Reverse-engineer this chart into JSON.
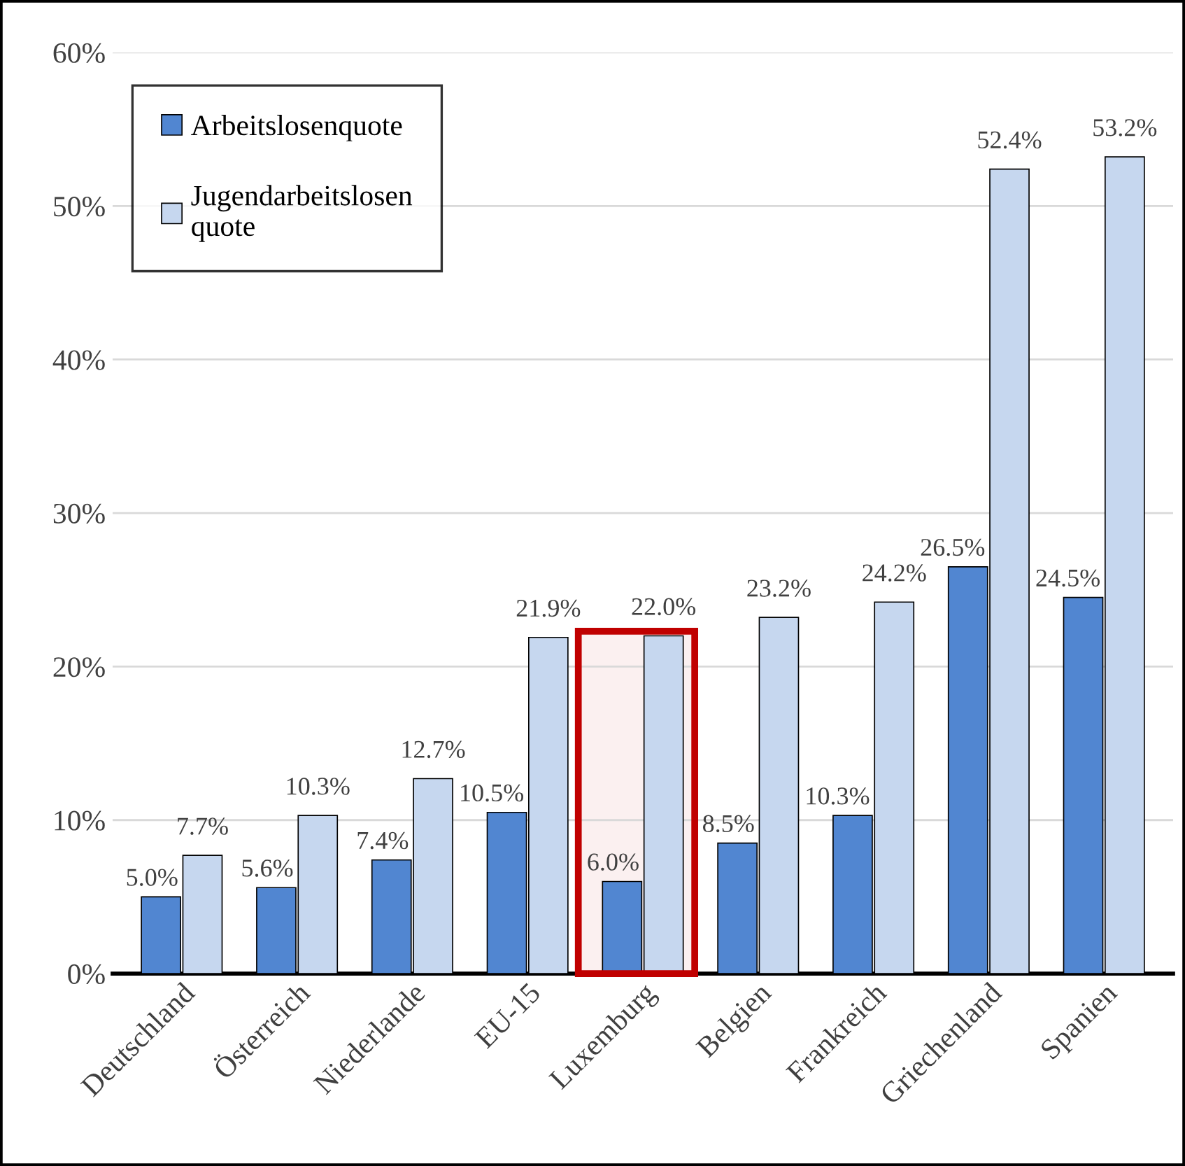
{
  "chart_data": {
    "type": "bar",
    "categories": [
      "Deutschland",
      "Österreich",
      "Niederlande",
      "EU-15",
      "Luxemburg",
      "Belgien",
      "Frankreich",
      "Griechenland",
      "Spanien"
    ],
    "series": [
      {
        "name": "Arbeitslosenquote",
        "color": "#5186d1",
        "values": [
          5.0,
          5.6,
          7.4,
          10.5,
          6.0,
          8.5,
          10.3,
          26.5,
          24.5
        ],
        "value_labels": [
          "5.0%",
          "5.6%",
          "7.4%",
          "10.5%",
          "6.0%",
          "8.5%",
          "10.3%",
          "26.5%",
          "24.5%"
        ]
      },
      {
        "name": "Jugendarbeitslosen\nquote",
        "color": "#c6d7ef",
        "values": [
          7.7,
          10.3,
          12.7,
          21.9,
          22.0,
          23.2,
          24.2,
          52.4,
          53.2
        ],
        "value_labels": [
          "7.7%",
          "10.3%",
          "12.7%",
          "21.9%",
          "22.0%",
          "23.2%",
          "24.2%",
          "52.4%",
          "53.2%"
        ]
      }
    ],
    "ylim": [
      0,
      60
    ],
    "yticks": [
      {
        "value": 0,
        "label": "0%"
      },
      {
        "value": 10,
        "label": "10%"
      },
      {
        "value": 20,
        "label": "20%"
      },
      {
        "value": 30,
        "label": "30%"
      },
      {
        "value": 40,
        "label": "40%"
      },
      {
        "value": 50,
        "label": "50%"
      },
      {
        "value": 60,
        "label": "60%"
      }
    ],
    "grid": "y",
    "legend": "top left",
    "bands": [
      {
        "axis": "x",
        "from": "Luxemburg",
        "to": "Luxemburg",
        "color": "#c00000"
      }
    ]
  }
}
